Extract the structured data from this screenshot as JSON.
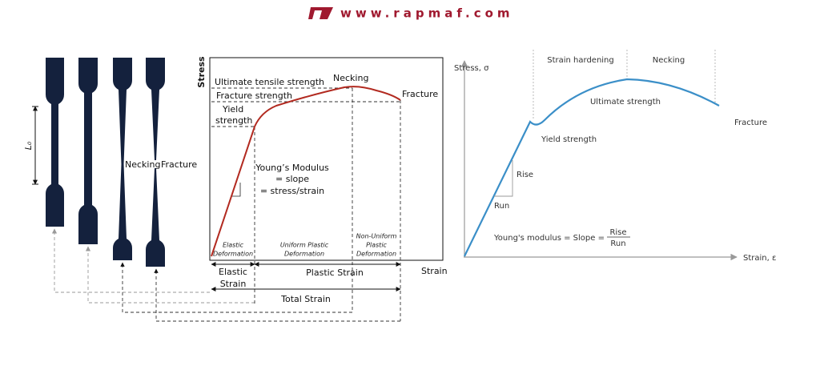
{
  "header": {
    "logo_text": "www.rapmaf.com"
  },
  "specimens": {
    "length_label": "L₀",
    "necking": "Necking",
    "fracture": "Fracture"
  },
  "left_diagram": {
    "y_axis_label": "Stress",
    "x_axis_label": "Strain",
    "ultimate_tensile_strength": "Ultimate tensile strength",
    "necking": "Necking",
    "fracture_strength": "Fracture strength",
    "fracture": "Fracture",
    "yield_strength": [
      "Yield",
      "strength"
    ],
    "youngs_modulus": [
      "Young’s Modulus",
      "= slope",
      "= stress/strain"
    ],
    "elastic_deformation": [
      "Elastic",
      "Deformation"
    ],
    "uniform_plastic_deformation": [
      "Uniform Plastic",
      "Deformation"
    ],
    "non_uniform_plastic_deformation": [
      "Non-Uniform",
      "Plastic",
      "Deformation"
    ],
    "elastic_strain": [
      "Elastic",
      "Strain"
    ],
    "plastic_strain": "Plastic Strain",
    "total_strain": "Total Strain"
  },
  "right_diagram": {
    "y_axis_label": "Stress, σ",
    "x_axis_label": "Strain, ε",
    "strain_hardening": "Strain hardening",
    "necking": "Necking",
    "ultimate_strength": "Ultimate strength",
    "yield_strength": "Yield strength",
    "fracture": "Fracture",
    "rise": "Rise",
    "run": "Run",
    "modulus_formula": "Young's modulus = Slope =",
    "fraction_numerator": "Rise",
    "fraction_denominator": "Run"
  }
}
